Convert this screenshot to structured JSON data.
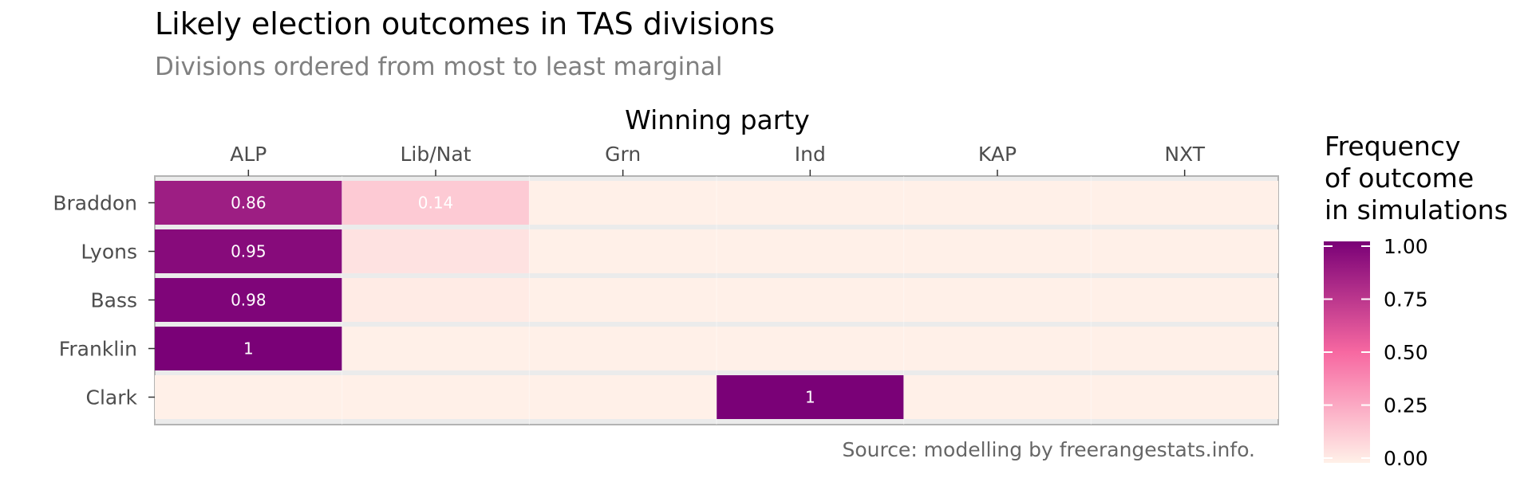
{
  "title": "Likely election outcomes in TAS divisions",
  "subtitle": "Divisions ordered from most to least marginal",
  "caption": "Source: modelling by freerangestats.info.",
  "legend": {
    "title_lines": [
      "Frequency",
      "of outcome",
      "in simulations"
    ],
    "ticks": [
      "1.00",
      "0.75",
      "0.50",
      "0.25",
      "0.00"
    ],
    "low_color": "#fff0e8",
    "mid_color": "#f768a1",
    "high_color": "#7a0177"
  },
  "chart_data": {
    "type": "heatmap",
    "x_title": "Winning party",
    "x_labels": [
      "ALP",
      "Lib/Nat",
      "Grn",
      "Ind",
      "KAP",
      "NXT"
    ],
    "y_labels": [
      "Braddon",
      "Lyons",
      "Bass",
      "Franklin",
      "Clark"
    ],
    "values": [
      [
        0.86,
        0.14,
        0,
        0,
        0,
        0
      ],
      [
        0.95,
        0.05,
        0,
        0,
        0,
        0
      ],
      [
        0.98,
        0.02,
        0,
        0,
        0,
        0
      ],
      [
        1,
        0,
        0,
        0,
        0,
        0
      ],
      [
        0,
        0,
        0,
        1,
        0,
        0
      ]
    ],
    "labels": [
      [
        "0.86",
        "0.14",
        "",
        "",
        "",
        ""
      ],
      [
        "0.95",
        "",
        "",
        "",
        "",
        ""
      ],
      [
        "0.98",
        "",
        "",
        "",
        "",
        ""
      ],
      [
        "1",
        "",
        "",
        "",
        "",
        ""
      ],
      [
        "",
        "",
        "",
        "1",
        "",
        ""
      ]
    ],
    "color_range": [
      0,
      1
    ],
    "grid": true,
    "legend_position": "right"
  }
}
